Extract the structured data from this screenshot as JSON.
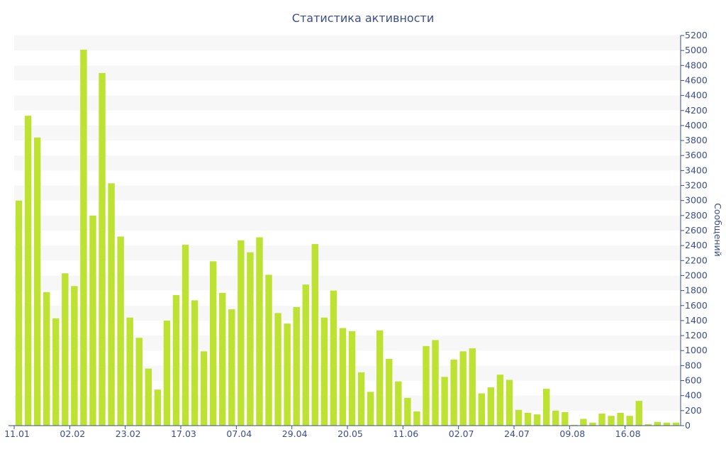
{
  "chart_data": {
    "type": "bar",
    "title": "Статистика активности",
    "xlabel": "",
    "ylabel": "Сообщений",
    "ylim": [
      0,
      5200
    ],
    "y_ticks": [
      0,
      200,
      400,
      600,
      800,
      1000,
      1200,
      1400,
      1600,
      1800,
      2000,
      2200,
      2400,
      2600,
      2800,
      3000,
      3200,
      3400,
      3600,
      3800,
      4000,
      4200,
      4400,
      4600,
      4800,
      5000,
      5200
    ],
    "y_axis_side": "right",
    "grid": "horizontal alternating bands",
    "x_tick_labels": [
      {
        "index": 0,
        "label": "11.01"
      },
      {
        "index": 6,
        "label": "02.02"
      },
      {
        "index": 12,
        "label": "23.02"
      },
      {
        "index": 18,
        "label": "17.03"
      },
      {
        "index": 24,
        "label": "07.04"
      },
      {
        "index": 30,
        "label": "29.04"
      },
      {
        "index": 36,
        "label": "20.05"
      },
      {
        "index": 42,
        "label": "11.06"
      },
      {
        "index": 48,
        "label": "02.07"
      },
      {
        "index": 54,
        "label": "24.07"
      },
      {
        "index": 60,
        "label": "09.08"
      },
      {
        "index": 66,
        "label": "16.08"
      }
    ],
    "values": [
      3000,
      4130,
      3840,
      1780,
      1430,
      2030,
      1860,
      5010,
      2800,
      4700,
      3230,
      2520,
      1440,
      1170,
      760,
      480,
      1400,
      1740,
      2410,
      1670,
      990,
      2190,
      1770,
      1550,
      2470,
      2310,
      2510,
      2010,
      1500,
      1360,
      1580,
      1880,
      2420,
      1440,
      1800,
      1300,
      1260,
      710,
      450,
      1270,
      890,
      590,
      370,
      190,
      1060,
      1140,
      650,
      880,
      990,
      1030,
      430,
      510,
      680,
      610,
      210,
      170,
      150,
      490,
      200,
      180,
      10,
      90,
      40,
      160,
      130,
      170,
      130,
      330,
      20,
      50,
      40,
      40
    ],
    "colors": {
      "bar": "#bde231",
      "band": "#f7f7f7",
      "axis": "#3b4e8c",
      "text": "#3b4e8c"
    }
  }
}
